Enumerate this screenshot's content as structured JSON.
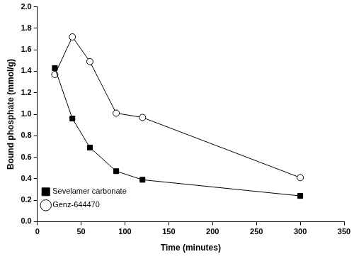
{
  "chart_data": {
    "type": "line",
    "x_label": "Time (minutes)",
    "y_label": "Bound phosphate (mmol/g)",
    "series": [
      {
        "name": "Sevelamer carbonate",
        "color": "#000000",
        "marker": "square",
        "x": [
          20,
          40,
          60,
          90,
          120,
          300
        ],
        "values": [
          1.43,
          0.96,
          0.69,
          0.47,
          0.39,
          0.24
        ]
      },
      {
        "name": "Genz-644470",
        "color": "#000000",
        "marker": "open_circle",
        "x": [
          20,
          40,
          60,
          90,
          120,
          300
        ],
        "values": [
          1.37,
          1.72,
          1.49,
          1.01,
          0.97,
          0.41
        ]
      }
    ],
    "xlim": [
      0,
      350
    ],
    "xticks": [
      0,
      50,
      100,
      150,
      200,
      250,
      300,
      350
    ],
    "ylim": [
      0,
      2
    ],
    "yticks": [
      {
        "value": 0,
        "label": "0.0"
      },
      0.2,
      0.4,
      0.6,
      0.8,
      {
        "value": 1,
        "label": "1.0"
      },
      1.2,
      1.4,
      1.6,
      1.8,
      {
        "value": 2,
        "label": "2.0"
      }
    ],
    "grid": false,
    "legend": "upper right"
  }
}
